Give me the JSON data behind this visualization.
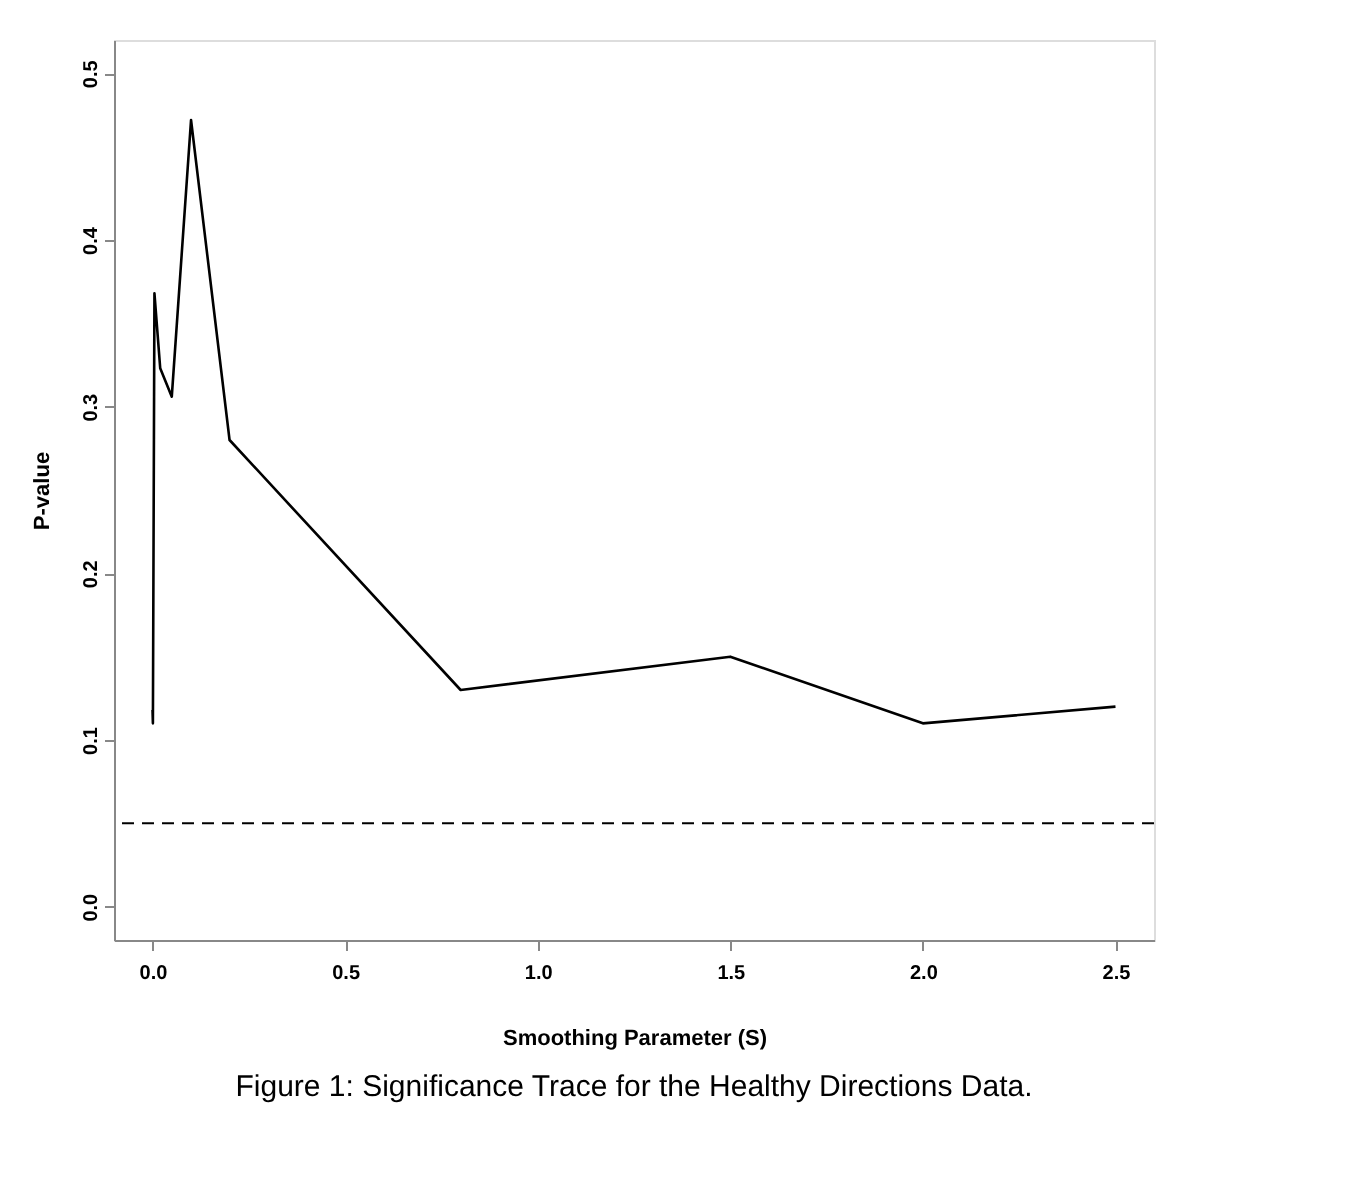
{
  "chart_data": {
    "type": "line",
    "xlabel": "Smoothing Parameter (S)",
    "ylabel": "P-value",
    "x": [
      0,
      0.001,
      0.005,
      0.02,
      0.05,
      0.1,
      0.2,
      0.8,
      1.5,
      2.0,
      2.5
    ],
    "series": [
      {
        "color": "#000000",
        "values": [
          0.118,
          0.11,
          0.368,
          0.323,
          0.306,
          0.472,
          0.28,
          0.13,
          0.15,
          0.11,
          0.12
        ]
      }
    ],
    "xlim": [
      -0.1,
      2.6
    ],
    "xticks": [
      {
        "value": 0,
        "label": "0.0"
      },
      0.5,
      {
        "value": 1,
        "label": "1.0"
      },
      1.5,
      {
        "value": 2,
        "label": "2.0"
      },
      2.5
    ],
    "ylim": [
      -0.02,
      0.52
    ],
    "yticks": [
      {
        "value": 0,
        "label": "0.0"
      },
      0.1,
      0.2,
      0.3,
      0.4,
      0.5
    ],
    "ref_lines": [
      {
        "axis": "y",
        "value": 0.05,
        "line_style": "dashed",
        "color": "#000000"
      }
    ],
    "grid": false,
    "marker": "none",
    "line_style": "solid",
    "annotations": [
      "Figure 1: Significance Trace for the Healthy Directions Data."
    ]
  }
}
